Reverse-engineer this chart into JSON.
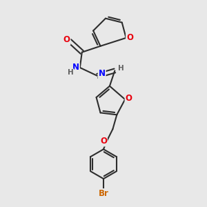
{
  "background_color": "#e8e8e8",
  "bond_color": "#2d2d2d",
  "bond_width": 1.5,
  "atom_colors": {
    "O": "#e8000d",
    "N": "#0000ff",
    "Br": "#cc6600",
    "H": "#606060",
    "C": "#2d2d2d"
  },
  "font_size": 8.5,
  "fig_width": 3.0,
  "fig_height": 3.0
}
